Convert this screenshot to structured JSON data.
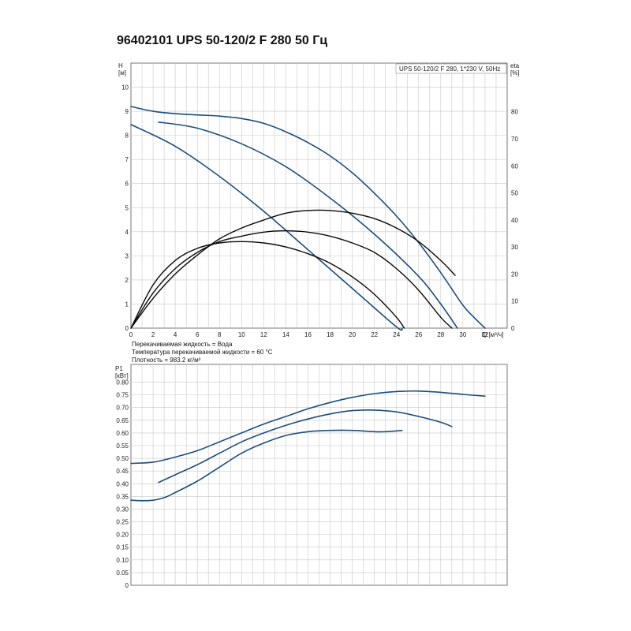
{
  "title": "96402101 UPS 50-120/2 F 280 50 Гц",
  "fluid_info": [
    "Перекачиваемая жидкость = Вода",
    "Температура перекачиваемой жидкости = 60 °C",
    "Плотность = 983.2 кг/м³"
  ],
  "chart_data": [
    {
      "type": "line",
      "legend_box": "UPS 50-120/2 F 280, 1*230 V, 50Hz",
      "y_label": [
        "H",
        "[м]"
      ],
      "y2_label": [
        "eta",
        "[%]"
      ],
      "x_label": "Q [м³/ч]",
      "xlim": [
        0,
        34
      ],
      "ylim": [
        0,
        11
      ],
      "y2lim": [
        0,
        98
      ],
      "x_ticks": [
        0,
        2,
        4,
        6,
        8,
        10,
        12,
        14,
        16,
        18,
        20,
        22,
        24,
        26,
        28,
        30,
        32
      ],
      "y_ticks": [
        0,
        1,
        2,
        3,
        4,
        5,
        6,
        7,
        8,
        9,
        10
      ],
      "y2_ticks": [
        0,
        10,
        20,
        30,
        40,
        50,
        60,
        70,
        80
      ],
      "grid": true,
      "series": [
        {
          "kind": "head",
          "axis": "y",
          "x": [
            0,
            2,
            4,
            6,
            8,
            10,
            12,
            14,
            16,
            18,
            20,
            22,
            24,
            26,
            28,
            30,
            31,
            32
          ],
          "values": [
            9.2,
            9.0,
            8.9,
            8.85,
            8.8,
            8.7,
            8.5,
            8.15,
            7.7,
            7.15,
            6.45,
            5.6,
            4.65,
            3.55,
            2.3,
            0.95,
            0.45,
            0
          ]
        },
        {
          "kind": "head",
          "axis": "y",
          "x": [
            2.5,
            6,
            10,
            14,
            18,
            22,
            26,
            28,
            29.5
          ],
          "values": [
            8.55,
            8.3,
            7.65,
            6.7,
            5.4,
            3.9,
            2.15,
            1.0,
            0
          ]
        },
        {
          "kind": "head",
          "axis": "y",
          "x": [
            0,
            4,
            8,
            12,
            16,
            20,
            24,
            24.5
          ],
          "values": [
            8.45,
            7.55,
            6.3,
            4.85,
            3.25,
            1.65,
            0.05,
            0
          ]
        },
        {
          "kind": "eta",
          "axis": "y2",
          "x": [
            0,
            2,
            4,
            6,
            8,
            10,
            12,
            14,
            16,
            18,
            20,
            22,
            24,
            26,
            28,
            29.3
          ],
          "values": [
            0,
            11,
            20,
            27,
            33,
            37,
            40,
            42.5,
            43.5,
            43.5,
            42.5,
            40.5,
            37,
            32,
            25,
            19.5
          ]
        },
        {
          "kind": "eta",
          "axis": "y2",
          "x": [
            0,
            2,
            4,
            6,
            8,
            10,
            12,
            14,
            16,
            18,
            20,
            22,
            24,
            26,
            28,
            29
          ],
          "values": [
            0,
            13,
            22,
            28,
            32,
            34,
            35.5,
            36,
            35.5,
            34,
            31.5,
            28,
            22,
            14,
            4,
            0
          ]
        },
        {
          "kind": "eta",
          "axis": "y2",
          "x": [
            0,
            2,
            4,
            6,
            8,
            10,
            12,
            14,
            16,
            18,
            20,
            22,
            24,
            24.7
          ],
          "values": [
            0,
            16,
            25,
            29.5,
            31.5,
            32,
            31.5,
            30,
            27.5,
            24,
            19,
            12.5,
            4,
            0
          ]
        }
      ]
    },
    {
      "type": "line",
      "y_label": [
        "P1",
        "[кВт]"
      ],
      "xlim": [
        0,
        34
      ],
      "ylim": [
        0,
        0.87
      ],
      "y_ticks": [
        0,
        0.05,
        0.1,
        0.15,
        0.2,
        0.25,
        0.3,
        0.35,
        0.4,
        0.45,
        0.5,
        0.55,
        0.6,
        0.65,
        0.7,
        0.75,
        0.8
      ],
      "y_tick_labels": [
        "0",
        "0.05",
        "0.10",
        "0.15",
        "0.20",
        "0.25",
        "0.30",
        "0.35",
        "0.40",
        "0.45",
        "0.50",
        "0.55",
        "0.60",
        "0.65",
        "0.70",
        "0.75",
        "0.80"
      ],
      "grid": true,
      "series": [
        {
          "kind": "power",
          "x": [
            0,
            2,
            4,
            6,
            8,
            10,
            12,
            14,
            16,
            18,
            20,
            22,
            24,
            26,
            28,
            30,
            32
          ],
          "values": [
            0.48,
            0.485,
            0.505,
            0.53,
            0.565,
            0.6,
            0.635,
            0.665,
            0.695,
            0.72,
            0.74,
            0.755,
            0.763,
            0.765,
            0.76,
            0.752,
            0.745
          ]
        },
        {
          "kind": "power",
          "x": [
            2.5,
            4,
            6,
            8,
            10,
            12,
            14,
            16,
            18,
            20,
            22,
            24,
            26,
            28,
            29
          ],
          "values": [
            0.405,
            0.435,
            0.475,
            0.52,
            0.565,
            0.6,
            0.63,
            0.655,
            0.675,
            0.688,
            0.69,
            0.683,
            0.665,
            0.642,
            0.625
          ]
        },
        {
          "kind": "power",
          "x": [
            0,
            1,
            2,
            3,
            4,
            6,
            8,
            10,
            12,
            14,
            16,
            18,
            20,
            22,
            23,
            24,
            24.5
          ],
          "values": [
            0.335,
            0.333,
            0.335,
            0.345,
            0.365,
            0.41,
            0.465,
            0.52,
            0.56,
            0.59,
            0.605,
            0.61,
            0.61,
            0.605,
            0.605,
            0.608,
            0.61
          ]
        }
      ]
    }
  ],
  "colors": {
    "head": "#1d4d7e",
    "eta": "#0a0a0a",
    "power": "#1d4d7e",
    "grid": "#c8c8c8",
    "frame": "#777777"
  }
}
